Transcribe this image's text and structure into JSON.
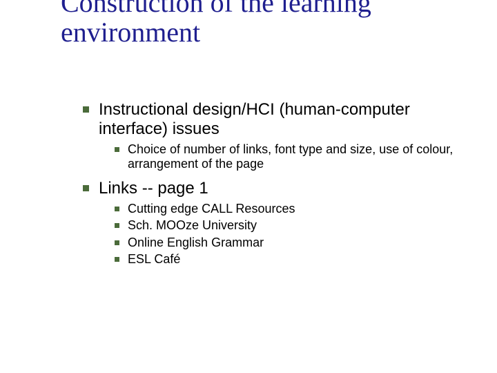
{
  "colors": {
    "title": "#1f1f8f",
    "body_text": "#000000",
    "bullet": "#4b6b3a",
    "background": "#ffffff"
  },
  "typography": {
    "title_font": "Times New Roman",
    "title_size_pt": 40,
    "body_font": "Arial",
    "lvl1_size_pt": 24,
    "lvl2_size_pt": 18
  },
  "title": "Construction of the learning environment",
  "items": [
    {
      "text": "Instructional design/HCI (human-computer interface) issues",
      "children": [
        {
          "text": "Choice of number of links, font type and size, use of colour, arrangement of the page"
        }
      ]
    },
    {
      "text": "Links -- page 1",
      "children": [
        {
          "text": "Cutting edge CALL Resources"
        },
        {
          "text": "Sch. MOOze University"
        },
        {
          "text": "Online English Grammar"
        },
        {
          "text": "ESL Café"
        }
      ]
    }
  ]
}
